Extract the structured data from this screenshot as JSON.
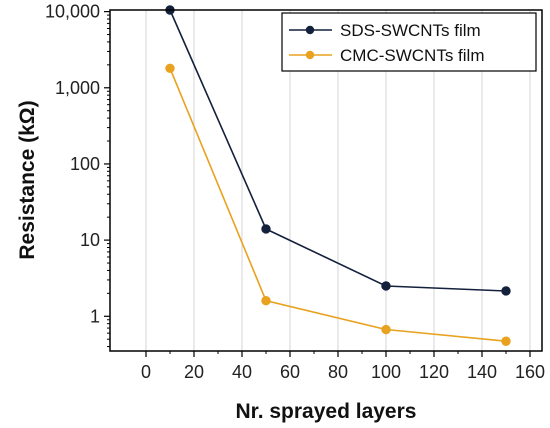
{
  "chart_data": {
    "type": "line",
    "xlabel": "Nr. sprayed layers",
    "ylabel": "Resistance (kΩ)",
    "x_scale": "linear",
    "y_scale": "log",
    "xlim": [
      -15,
      165
    ],
    "ylim": [
      0.35,
      10500
    ],
    "x_ticks": [
      0,
      20,
      40,
      60,
      80,
      100,
      120,
      140,
      160
    ],
    "y_ticks": [
      1,
      10,
      100,
      1000,
      10000
    ],
    "y_tick_labels": [
      "1",
      "10",
      "100",
      "1,000",
      "10,000"
    ],
    "grid": "vertical",
    "legend_position": "top-right",
    "series": [
      {
        "name": "SDS-SWCNTs film",
        "color": "#14213d",
        "points": [
          [
            10,
            10500
          ],
          [
            50,
            14
          ],
          [
            100,
            2.5
          ],
          [
            150,
            2.15
          ]
        ]
      },
      {
        "name": "CMC-SWCNTs film",
        "color": "#e8a21f",
        "points": [
          [
            10,
            1800
          ],
          [
            50,
            1.6
          ],
          [
            100,
            0.67
          ],
          [
            150,
            0.47
          ]
        ]
      }
    ]
  }
}
